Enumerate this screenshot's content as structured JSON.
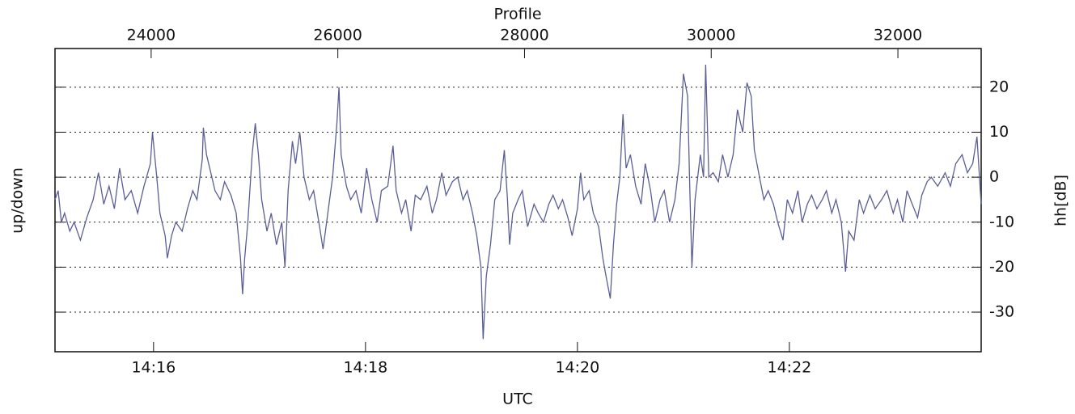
{
  "chart_data": {
    "type": "line",
    "xlabel": "UTC",
    "x2label": "Profile",
    "ylabel": "up/down",
    "y2label": "hh[dB]",
    "xlim": [
      15.07,
      23.81
    ],
    "xticks": [
      {
        "value": 16,
        "label": "14:16"
      },
      {
        "value": 18,
        "label": "14:18"
      },
      {
        "value": 20,
        "label": "14:20"
      },
      {
        "value": 22,
        "label": "14:22"
      }
    ],
    "x2lim": [
      22970,
      32892
    ],
    "x2ticks": [
      24000,
      26000,
      28000,
      30000,
      32000
    ],
    "ylim": [
      -38.8,
      28.6
    ],
    "yticks": [
      -30,
      -20,
      -10,
      0,
      10,
      20
    ],
    "grid": true,
    "series": [
      {
        "color": "#5a5e95",
        "x": [
          15.07,
          15.1,
          15.13,
          15.16,
          15.21,
          15.25,
          15.31,
          15.37,
          15.43,
          15.48,
          15.53,
          15.58,
          15.63,
          15.68,
          15.73,
          15.79,
          15.85,
          15.91,
          15.97,
          15.99,
          16.03,
          16.06,
          16.11,
          16.13,
          16.17,
          16.21,
          16.27,
          16.32,
          16.37,
          16.41,
          16.46,
          16.47,
          16.5,
          16.53,
          16.58,
          16.63,
          16.67,
          16.73,
          16.78,
          16.82,
          16.84,
          16.86,
          16.89,
          16.93,
          16.96,
          16.99,
          17.02,
          17.07,
          17.11,
          17.16,
          17.21,
          17.24,
          17.27,
          17.31,
          17.34,
          17.38,
          17.42,
          17.47,
          17.51,
          17.56,
          17.6,
          17.65,
          17.69,
          17.73,
          17.75,
          17.77,
          17.82,
          17.86,
          17.91,
          17.96,
          18.01,
          18.06,
          18.11,
          18.15,
          18.21,
          18.26,
          18.29,
          18.34,
          18.38,
          18.43,
          18.47,
          18.52,
          18.58,
          18.63,
          18.67,
          18.72,
          18.76,
          18.82,
          18.87,
          18.92,
          18.96,
          19.01,
          19.05,
          19.09,
          19.11,
          19.14,
          19.18,
          19.22,
          19.27,
          19.31,
          19.34,
          19.36,
          19.39,
          19.44,
          19.48,
          19.53,
          19.59,
          19.63,
          19.68,
          19.73,
          19.77,
          19.82,
          19.86,
          19.91,
          19.95,
          20.0,
          20.03,
          20.06,
          20.11,
          20.15,
          20.2,
          20.24,
          20.27,
          20.31,
          20.34,
          20.37,
          20.4,
          20.43,
          20.46,
          20.5,
          20.55,
          20.6,
          20.64,
          20.69,
          20.73,
          20.78,
          20.82,
          20.87,
          20.92,
          20.96,
          21.0,
          21.04,
          21.06,
          21.08,
          21.11,
          21.16,
          21.19,
          21.21,
          21.24,
          21.28,
          21.33,
          21.37,
          21.42,
          21.47,
          21.51,
          21.56,
          21.6,
          21.64,
          21.67,
          21.71,
          21.76,
          21.8,
          21.85,
          21.89,
          21.94,
          21.98,
          22.03,
          22.08,
          22.12,
          22.17,
          22.21,
          22.26,
          22.31,
          22.35,
          22.4,
          22.44,
          22.49,
          22.53,
          22.56,
          22.61,
          22.66,
          22.7,
          22.76,
          22.81,
          22.87,
          22.92,
          22.98,
          23.02,
          23.07,
          23.11,
          23.16,
          23.21,
          23.25,
          23.3,
          23.34,
          23.4,
          23.47,
          23.52,
          23.57,
          23.63,
          23.68,
          23.73,
          23.77,
          23.81
        ],
        "values": [
          -5,
          -3,
          -10,
          -8,
          -12,
          -10,
          -14,
          -9,
          -5,
          1,
          -6,
          -2,
          -7,
          2,
          -5,
          -3,
          -8,
          -2,
          3,
          10,
          0,
          -8,
          -13,
          -18,
          -13,
          -10,
          -12,
          -7,
          -3,
          -5,
          4,
          11,
          5,
          2,
          -3,
          -5,
          -1,
          -4,
          -8,
          -18,
          -26,
          -18,
          -10,
          5,
          12,
          5,
          -5,
          -12,
          -8,
          -15,
          -10,
          -20,
          -3,
          8,
          3,
          10,
          0,
          -5,
          -3,
          -10,
          -16,
          -7,
          0,
          12,
          20,
          5,
          -2,
          -5,
          -3,
          -8,
          2,
          -5,
          -10,
          -3,
          -2,
          7,
          -3,
          -8,
          -5,
          -12,
          -4,
          -5,
          -2,
          -8,
          -5,
          1,
          -4,
          -1,
          0,
          -5,
          -3,
          -8,
          -13,
          -20,
          -36,
          -22,
          -15,
          -5,
          -3,
          6,
          -5,
          -15,
          -8,
          -5,
          -3,
          -11,
          -6,
          -8,
          -10,
          -6,
          -4,
          -7,
          -5,
          -9,
          -13,
          -7,
          1,
          -5,
          -3,
          -8,
          -11,
          -18,
          -22,
          -27,
          -15,
          -6,
          0,
          14,
          2,
          5,
          -2,
          -6,
          3,
          -3,
          -10,
          -5,
          -3,
          -10,
          -5,
          3,
          23,
          18,
          -2,
          -20,
          -5,
          5,
          0,
          25,
          0,
          1,
          -1,
          5,
          0,
          5,
          15,
          10,
          21,
          18,
          6,
          1,
          -5,
          -3,
          -6,
          -10,
          -14,
          -5,
          -8,
          -3,
          -10,
          -6,
          -4,
          -7,
          -5,
          -3,
          -8,
          -5,
          -10,
          -21,
          -12,
          -14,
          -5,
          -8,
          -4,
          -7,
          -5,
          -3,
          -8,
          -5,
          -10,
          -3,
          -6,
          -9,
          -4,
          -1,
          0,
          -2,
          1,
          -2,
          3,
          5,
          1,
          3,
          9,
          -6
        ]
      }
    ]
  }
}
